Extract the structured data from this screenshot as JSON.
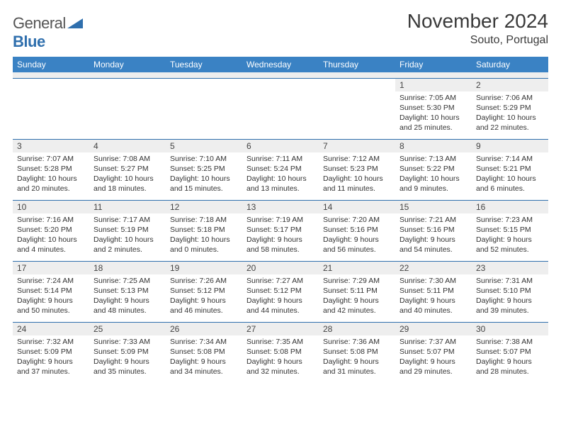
{
  "brand": {
    "word1": "General",
    "word2": "Blue"
  },
  "title": "November 2024",
  "location": "Souto, Portugal",
  "columns": [
    "Sunday",
    "Monday",
    "Tuesday",
    "Wednesday",
    "Thursday",
    "Friday",
    "Saturday"
  ],
  "colors": {
    "header_bg": "#3a82c4",
    "header_text": "#ffffff",
    "rule": "#2f6fad",
    "daybar_bg": "#eeeeee",
    "body_text": "#333333",
    "title_text": "#3a3a3a"
  },
  "fonts": {
    "title_size_pt": 21,
    "location_size_pt": 12,
    "header_size_pt": 9,
    "daynum_size_pt": 9,
    "body_size_pt": 8
  },
  "layout": {
    "cols": 7,
    "rows": 5,
    "first_weekday": "Sunday",
    "first_day_col_index": 5
  },
  "days": [
    {
      "n": 1,
      "sunrise": "7:05 AM",
      "sunset": "5:30 PM",
      "daylight": "10 hours and 25 minutes."
    },
    {
      "n": 2,
      "sunrise": "7:06 AM",
      "sunset": "5:29 PM",
      "daylight": "10 hours and 22 minutes."
    },
    {
      "n": 3,
      "sunrise": "7:07 AM",
      "sunset": "5:28 PM",
      "daylight": "10 hours and 20 minutes."
    },
    {
      "n": 4,
      "sunrise": "7:08 AM",
      "sunset": "5:27 PM",
      "daylight": "10 hours and 18 minutes."
    },
    {
      "n": 5,
      "sunrise": "7:10 AM",
      "sunset": "5:25 PM",
      "daylight": "10 hours and 15 minutes."
    },
    {
      "n": 6,
      "sunrise": "7:11 AM",
      "sunset": "5:24 PM",
      "daylight": "10 hours and 13 minutes."
    },
    {
      "n": 7,
      "sunrise": "7:12 AM",
      "sunset": "5:23 PM",
      "daylight": "10 hours and 11 minutes."
    },
    {
      "n": 8,
      "sunrise": "7:13 AM",
      "sunset": "5:22 PM",
      "daylight": "10 hours and 9 minutes."
    },
    {
      "n": 9,
      "sunrise": "7:14 AM",
      "sunset": "5:21 PM",
      "daylight": "10 hours and 6 minutes."
    },
    {
      "n": 10,
      "sunrise": "7:16 AM",
      "sunset": "5:20 PM",
      "daylight": "10 hours and 4 minutes."
    },
    {
      "n": 11,
      "sunrise": "7:17 AM",
      "sunset": "5:19 PM",
      "daylight": "10 hours and 2 minutes."
    },
    {
      "n": 12,
      "sunrise": "7:18 AM",
      "sunset": "5:18 PM",
      "daylight": "10 hours and 0 minutes."
    },
    {
      "n": 13,
      "sunrise": "7:19 AM",
      "sunset": "5:17 PM",
      "daylight": "9 hours and 58 minutes."
    },
    {
      "n": 14,
      "sunrise": "7:20 AM",
      "sunset": "5:16 PM",
      "daylight": "9 hours and 56 minutes."
    },
    {
      "n": 15,
      "sunrise": "7:21 AM",
      "sunset": "5:16 PM",
      "daylight": "9 hours and 54 minutes."
    },
    {
      "n": 16,
      "sunrise": "7:23 AM",
      "sunset": "5:15 PM",
      "daylight": "9 hours and 52 minutes."
    },
    {
      "n": 17,
      "sunrise": "7:24 AM",
      "sunset": "5:14 PM",
      "daylight": "9 hours and 50 minutes."
    },
    {
      "n": 18,
      "sunrise": "7:25 AM",
      "sunset": "5:13 PM",
      "daylight": "9 hours and 48 minutes."
    },
    {
      "n": 19,
      "sunrise": "7:26 AM",
      "sunset": "5:12 PM",
      "daylight": "9 hours and 46 minutes."
    },
    {
      "n": 20,
      "sunrise": "7:27 AM",
      "sunset": "5:12 PM",
      "daylight": "9 hours and 44 minutes."
    },
    {
      "n": 21,
      "sunrise": "7:29 AM",
      "sunset": "5:11 PM",
      "daylight": "9 hours and 42 minutes."
    },
    {
      "n": 22,
      "sunrise": "7:30 AM",
      "sunset": "5:11 PM",
      "daylight": "9 hours and 40 minutes."
    },
    {
      "n": 23,
      "sunrise": "7:31 AM",
      "sunset": "5:10 PM",
      "daylight": "9 hours and 39 minutes."
    },
    {
      "n": 24,
      "sunrise": "7:32 AM",
      "sunset": "5:09 PM",
      "daylight": "9 hours and 37 minutes."
    },
    {
      "n": 25,
      "sunrise": "7:33 AM",
      "sunset": "5:09 PM",
      "daylight": "9 hours and 35 minutes."
    },
    {
      "n": 26,
      "sunrise": "7:34 AM",
      "sunset": "5:08 PM",
      "daylight": "9 hours and 34 minutes."
    },
    {
      "n": 27,
      "sunrise": "7:35 AM",
      "sunset": "5:08 PM",
      "daylight": "9 hours and 32 minutes."
    },
    {
      "n": 28,
      "sunrise": "7:36 AM",
      "sunset": "5:08 PM",
      "daylight": "9 hours and 31 minutes."
    },
    {
      "n": 29,
      "sunrise": "7:37 AM",
      "sunset": "5:07 PM",
      "daylight": "9 hours and 29 minutes."
    },
    {
      "n": 30,
      "sunrise": "7:38 AM",
      "sunset": "5:07 PM",
      "daylight": "9 hours and 28 minutes."
    }
  ],
  "labels": {
    "sunrise": "Sunrise:",
    "sunset": "Sunset:",
    "daylight": "Daylight:"
  }
}
